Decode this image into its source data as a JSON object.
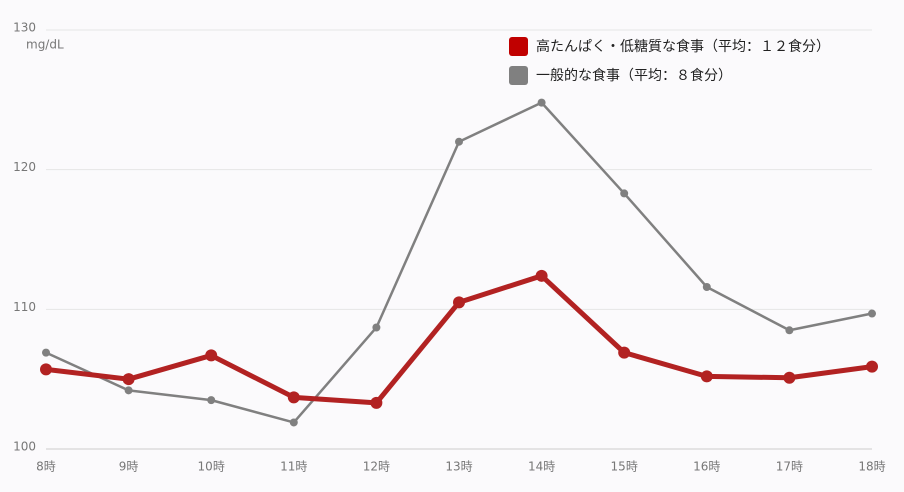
{
  "chart_data": {
    "type": "line",
    "y_label": "mg/dL",
    "categories": [
      "8時",
      "9時",
      "10時",
      "11時",
      "12時",
      "13時",
      "14時",
      "15時",
      "16時",
      "17時",
      "18時"
    ],
    "series": [
      {
        "name": "高たんぱく・低糖質な食事（平均：１２食分）",
        "color": "#b22222",
        "values": [
          105.7,
          105.0,
          106.7,
          103.7,
          103.3,
          110.5,
          112.4,
          106.9,
          105.2,
          105.1,
          105.9
        ]
      },
      {
        "name": "一般的な食事（平均：８食分）",
        "color": "#808080",
        "values": [
          106.9,
          104.2,
          103.5,
          101.9,
          108.7,
          122.0,
          124.8,
          118.3,
          111.6,
          108.5,
          109.7
        ]
      }
    ],
    "ylim": [
      100,
      130
    ],
    "yticks": [
      100,
      110,
      120,
      130
    ],
    "grid": true
  }
}
